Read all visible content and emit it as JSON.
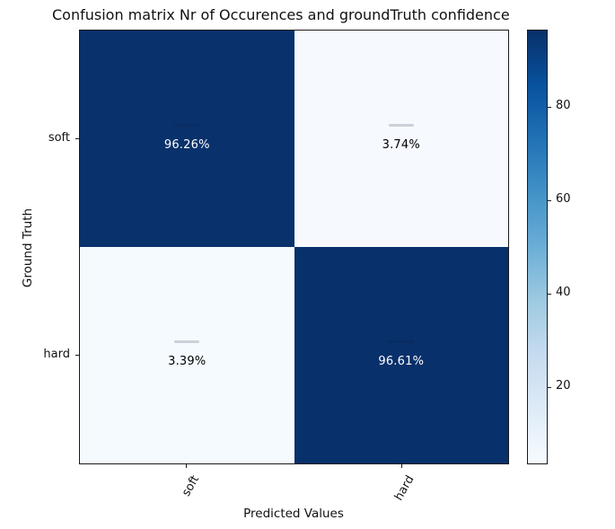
{
  "title": "Confusion matrix Nr of Occurences and  groundTruth confidence",
  "axes": {
    "xlabel": "Predicted Values",
    "ylabel": "Ground Truth"
  },
  "chart_data": {
    "type": "heatmap",
    "title": "Confusion matrix Nr of Occurences and  groundTruth confidence",
    "xlabel": "Predicted Values",
    "ylabel": "Ground Truth",
    "x_categories": [
      "soft",
      "hard"
    ],
    "y_categories": [
      "soft",
      "hard"
    ],
    "values_percent": [
      [
        96.26,
        3.74
      ],
      [
        3.39,
        96.61
      ]
    ],
    "cell_labels": [
      [
        "96.26%",
        "3.74%"
      ],
      [
        "3.39%",
        "96.61%"
      ]
    ],
    "cell_colors": [
      [
        "#09316b",
        "#f6fafe"
      ],
      [
        "#f5fafe",
        "#08306b"
      ]
    ],
    "cell_text_colors": [
      [
        "#ffffff",
        "#000000"
      ],
      [
        "#000000",
        "#ffffff"
      ]
    ],
    "colormap": "Blues",
    "colormap_stops": [
      "#f7fbff",
      "#deebf7",
      "#c6dbef",
      "#9ecae1",
      "#6baed6",
      "#4292c6",
      "#2171b5",
      "#08519c",
      "#08306b"
    ],
    "colorbar": {
      "ticks": [
        20,
        40,
        60,
        80
      ],
      "range": [
        3.39,
        96.61
      ],
      "position": "right"
    },
    "grid": false
  }
}
